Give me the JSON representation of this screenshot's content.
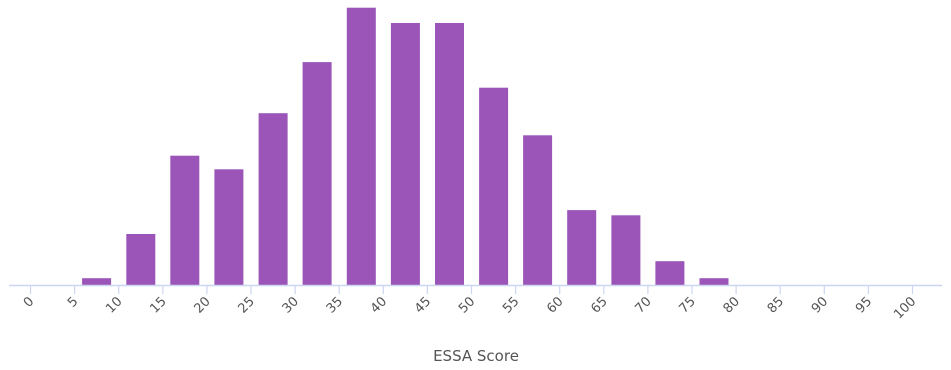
{
  "chart_data": {
    "type": "bar",
    "title": "",
    "xlabel": "ESSA Score",
    "ylabel": "",
    "x_ticks": [
      "0",
      "5",
      "10",
      "15",
      "20",
      "25",
      "30",
      "35",
      "40",
      "45",
      "50",
      "55",
      "60",
      "65",
      "70",
      "75",
      "80",
      "85",
      "90",
      "95",
      "100"
    ],
    "categories": [
      "5",
      "10",
      "15",
      "20",
      "25",
      "30",
      "35",
      "40",
      "45",
      "50",
      "55",
      "60",
      "65",
      "70",
      "75"
    ],
    "values": [
      2,
      15,
      38,
      34,
      50.5,
      65.5,
      81.5,
      77,
      77,
      58,
      44,
      22,
      20.5,
      7,
      2
    ],
    "ylim": [
      0,
      82
    ],
    "grid": false,
    "legend": "none",
    "colors": {
      "bar": "#9b55b8",
      "axis": "#cdd6f0",
      "text": "#555555"
    }
  }
}
